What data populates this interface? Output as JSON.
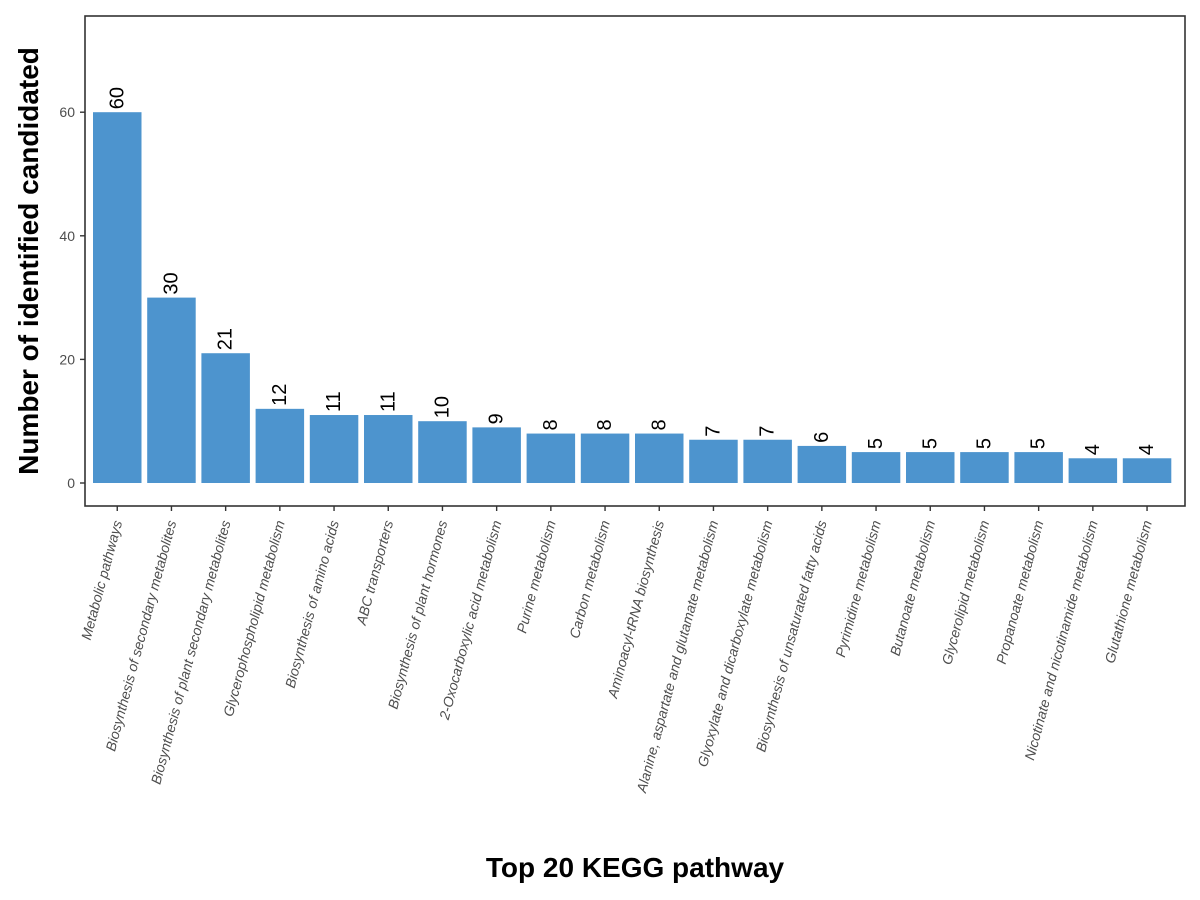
{
  "chart_data": {
    "type": "bar",
    "title": "",
    "xlabel": "Top 20 KEGG pathway",
    "ylabel": "Number of identified candidated",
    "categories": [
      "Metabolic pathways",
      "Biosynthesis of secondary metabolites",
      "Biosynthesis of plant secondary metabolites",
      "Glycerophospholipid metabolism",
      "Biosynthesis of amino acids",
      "ABC transporters",
      "Biosynthesis of plant hormones",
      "2-Oxocarboxylic acid metabolism",
      "Purine metabolism",
      "Carbon metabolism",
      "Aminoacyl-tRNA biosynthesis",
      "Alanine, aspartate and glutamate metabolism",
      "Glyoxylate and dicarboxylate metabolism",
      "Biosynthesis of unsaturated fatty acids",
      "Pyrimidine metabolism",
      "Butanoate metabolism",
      "Glycerolipid metabolism",
      "Propanoate metabolism",
      "Nicotinate and nicotinamide metabolism",
      "Glutathione metabolism"
    ],
    "values": [
      60,
      30,
      21,
      12,
      11,
      11,
      10,
      9,
      8,
      8,
      8,
      7,
      7,
      6,
      5,
      5,
      5,
      5,
      4,
      4
    ],
    "yticks": [
      0,
      20,
      40,
      60
    ],
    "ylim": [
      0,
      75
    ],
    "grid": false,
    "bar_color": "#4d94ce",
    "data_labels": true
  }
}
